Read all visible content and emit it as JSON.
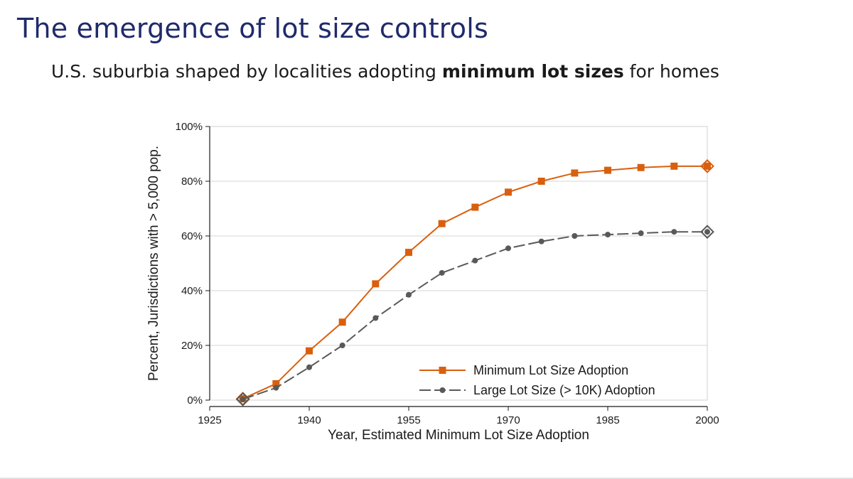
{
  "slide": {
    "title": "The emergence of lot size controls",
    "subtitle_pre": "U.S. suburbia shaped by localities adopting ",
    "subtitle_bold": "minimum lot sizes",
    "subtitle_post": " for homes"
  },
  "chart_data": {
    "type": "line",
    "title": "",
    "xlabel": "Year, Estimated Minimum Lot Size Adoption",
    "ylabel": "Percent, Jurisdictions with > 5,000 pop.",
    "xlim": [
      1925,
      2000
    ],
    "ylim": [
      0,
      100
    ],
    "xticks": [
      1925,
      1940,
      1955,
      1970,
      1985,
      2000
    ],
    "yticks": [
      0,
      20,
      40,
      60,
      80,
      100
    ],
    "ytick_labels": [
      "0%",
      "20%",
      "40%",
      "60%",
      "80%",
      "100%"
    ],
    "grid": "horizontal",
    "legend_position": "bottom-right",
    "x": [
      1930,
      1935,
      1940,
      1945,
      1950,
      1955,
      1960,
      1965,
      1970,
      1975,
      1980,
      1985,
      1990,
      1995,
      2000
    ],
    "series": [
      {
        "name": "Minimum Lot Size Adoption",
        "color": "#d95f0e",
        "marker": "square",
        "line_style": "solid",
        "values": [
          0.5,
          6,
          18,
          28.5,
          42.5,
          54,
          64.5,
          70.5,
          76,
          80,
          83,
          84,
          85,
          85.5,
          85.5
        ]
      },
      {
        "name": "Large Lot Size (> 10K) Adoption",
        "color": "#595959",
        "marker": "circle",
        "line_style": "dashed",
        "values": [
          0.3,
          4.5,
          12,
          20,
          30,
          38.5,
          46.5,
          51,
          55.5,
          58,
          60,
          60.5,
          61,
          61.5,
          61.5
        ]
      }
    ]
  }
}
